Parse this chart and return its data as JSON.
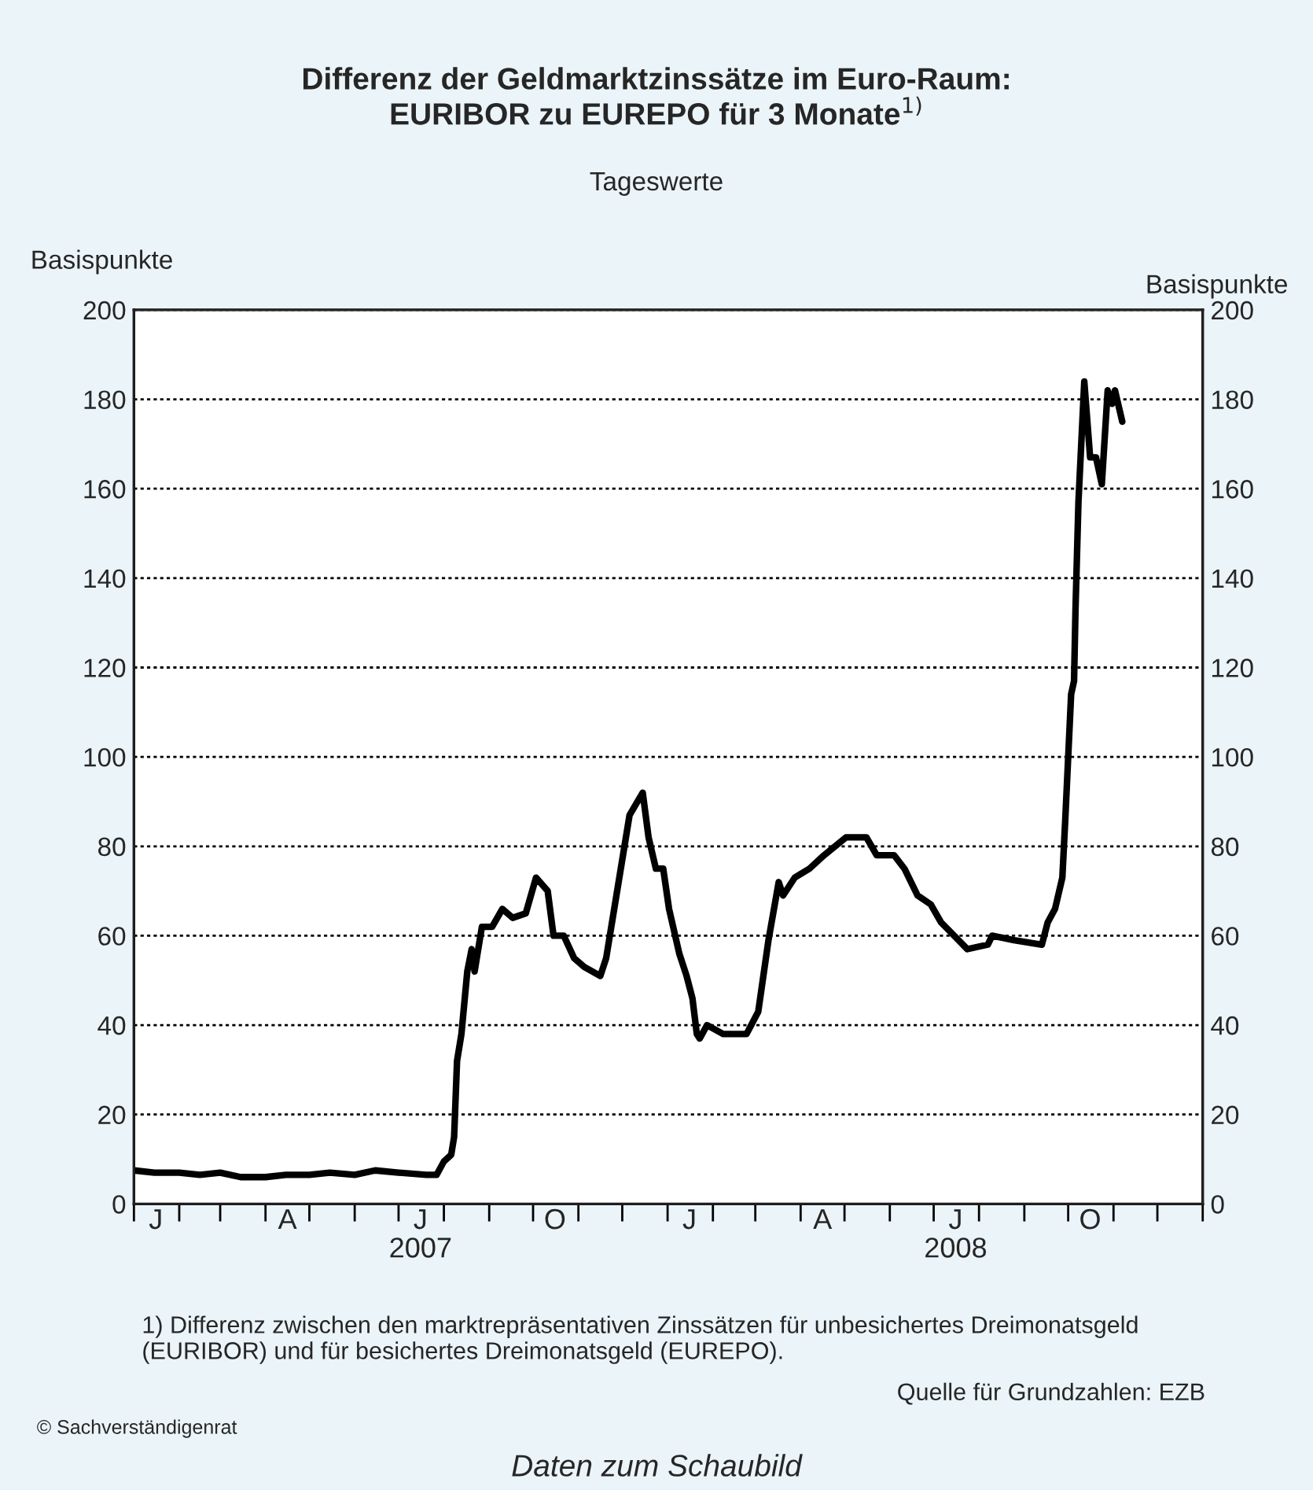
{
  "chart_data": {
    "type": "line",
    "title": "Differenz der Geldmarktzinssätze im Euro-Raum:\nEURIBOR zu EUREPO für 3 Monate$^{1)}$",
    "subtitle": "Tageswerte",
    "ylabel": "Basispunkte",
    "y2label": "Basispunkte",
    "x": [
      "2007-01-01",
      "2007-01-15",
      "2007-02-01",
      "2007-02-15",
      "2007-03-01",
      "2007-03-15",
      "2007-04-01",
      "2007-04-15",
      "2007-05-01",
      "2007-05-15",
      "2007-06-01",
      "2007-06-15",
      "2007-07-01",
      "2007-07-20",
      "2007-07-27",
      "2007-08-01",
      "2007-08-06",
      "2007-08-08",
      "2007-08-10",
      "2007-08-13",
      "2007-08-17",
      "2007-08-20",
      "2007-08-22",
      "2007-08-27",
      "2007-09-03",
      "2007-09-10",
      "2007-09-17",
      "2007-09-26",
      "2007-10-03",
      "2007-10-11",
      "2007-10-15",
      "2007-10-22",
      "2007-10-29",
      "2007-11-05",
      "2007-11-16",
      "2007-11-20",
      "2007-11-27",
      "2007-12-06",
      "2007-12-15",
      "2007-12-19",
      "2007-12-24",
      "2007-12-29",
      "2008-01-02",
      "2008-01-09",
      "2008-01-14",
      "2008-01-18",
      "2008-01-21",
      "2008-01-23",
      "2008-01-28",
      "2008-02-08",
      "2008-02-15",
      "2008-02-24",
      "2008-03-03",
      "2008-03-10",
      "2008-03-17",
      "2008-03-20",
      "2008-03-28",
      "2008-04-07",
      "2008-04-17",
      "2008-05-02",
      "2008-05-16",
      "2008-05-23",
      "2008-06-04",
      "2008-06-11",
      "2008-06-20",
      "2008-06-29",
      "2008-07-06",
      "2008-07-24",
      "2008-08-07",
      "2008-08-10",
      "2008-08-25",
      "2008-09-13",
      "2008-09-17",
      "2008-09-22",
      "2008-09-27",
      "2008-09-29",
      "2008-10-01",
      "2008-10-03",
      "2008-10-05",
      "2008-10-06",
      "2008-10-08",
      "2008-10-12",
      "2008-10-16",
      "2008-10-20",
      "2008-10-24",
      "2008-10-28",
      "2008-10-31",
      "2008-11-02",
      "2008-11-07"
    ],
    "series": [
      {
        "color": "#000000",
        "values": [
          7.5,
          7,
          7,
          6.5,
          7,
          6,
          6,
          6.5,
          6.5,
          7,
          6.5,
          7.5,
          7,
          6.5,
          6.5,
          9.5,
          11,
          15,
          32,
          38,
          52,
          57,
          52,
          62,
          62,
          66,
          64,
          65,
          73,
          70,
          60,
          60,
          55,
          53,
          51,
          55,
          69,
          87,
          92,
          82,
          75,
          75,
          66,
          56,
          51,
          46,
          38,
          37,
          40,
          38,
          38,
          38,
          43,
          59,
          72,
          69,
          73,
          75,
          78,
          82,
          82,
          78,
          78,
          75,
          69,
          67,
          63,
          57,
          58,
          60,
          59,
          58,
          63,
          66,
          73,
          86,
          100,
          114,
          117,
          133,
          157,
          184,
          167,
          167,
          161,
          182,
          179,
          182,
          175
        ]
      }
    ],
    "xlim": [
      "2007-01-01",
      "2009-01-01"
    ],
    "xticks": [
      {
        "value": "2007-01-01",
        "label": null
      },
      {
        "value": "2007-02-01",
        "label": null
      },
      {
        "value": "2007-03-01",
        "label": null
      },
      {
        "value": "2007-04-01",
        "label": null
      },
      {
        "value": "2007-05-01",
        "label": null
      },
      {
        "value": "2007-06-01",
        "label": null
      },
      {
        "value": "2007-07-01",
        "label": null
      },
      {
        "value": "2007-08-01",
        "label": null
      },
      {
        "value": "2007-09-01",
        "label": null
      },
      {
        "value": "2007-10-01",
        "label": null
      },
      {
        "value": "2007-11-01",
        "label": null
      },
      {
        "value": "2007-12-01",
        "label": null
      },
      {
        "value": "2008-01-01",
        "label": null
      },
      {
        "value": "2008-02-01",
        "label": null
      },
      {
        "value": "2008-03-01",
        "label": null
      },
      {
        "value": "2008-04-01",
        "label": null
      },
      {
        "value": "2008-05-01",
        "label": null
      },
      {
        "value": "2008-06-01",
        "label": null
      },
      {
        "value": "2008-07-01",
        "label": null
      },
      {
        "value": "2008-08-01",
        "label": null
      },
      {
        "value": "2008-09-01",
        "label": null
      },
      {
        "value": "2008-10-01",
        "label": null
      },
      {
        "value": "2008-11-01",
        "label": null
      },
      {
        "value": "2008-12-01",
        "label": null
      },
      {
        "value": "2009-01-01",
        "label": null
      },
      {
        "value": "2007-01-16",
        "label": "J"
      },
      {
        "value": "2007-04-16",
        "label": "A"
      },
      {
        "value": "2007-07-16",
        "label": "J\n2007"
      },
      {
        "value": "2007-10-16",
        "label": "O"
      },
      {
        "value": "2008-01-16",
        "label": "J"
      },
      {
        "value": "2008-04-16",
        "label": "A"
      },
      {
        "value": "2008-07-16",
        "label": "J\n2008"
      },
      {
        "value": "2008-10-16",
        "label": "O"
      }
    ],
    "ylim": [
      0,
      200
    ],
    "yticks": [
      0,
      20,
      40,
      60,
      80,
      100,
      120,
      140,
      160,
      180,
      200
    ],
    "y2lim": [
      0,
      200
    ],
    "y2ticks": [
      0,
      20,
      40,
      60,
      80,
      100,
      120,
      140,
      160,
      180,
      200
    ],
    "grid": "y",
    "line_style": "solid",
    "marker": "none",
    "legend": false,
    "annotations": [
      "1) Differenz zwischen den marktrepräsentativen Zinssätzen für unbesichertes Dreimonatsgeld\n(EURIBOR) und für besichertes Dreimonatsgeld (EUREPO).",
      "Quelle für Grundzahlen: EZB",
      "© Sachverständigenrat",
      "Daten zum Schaubild"
    ]
  }
}
